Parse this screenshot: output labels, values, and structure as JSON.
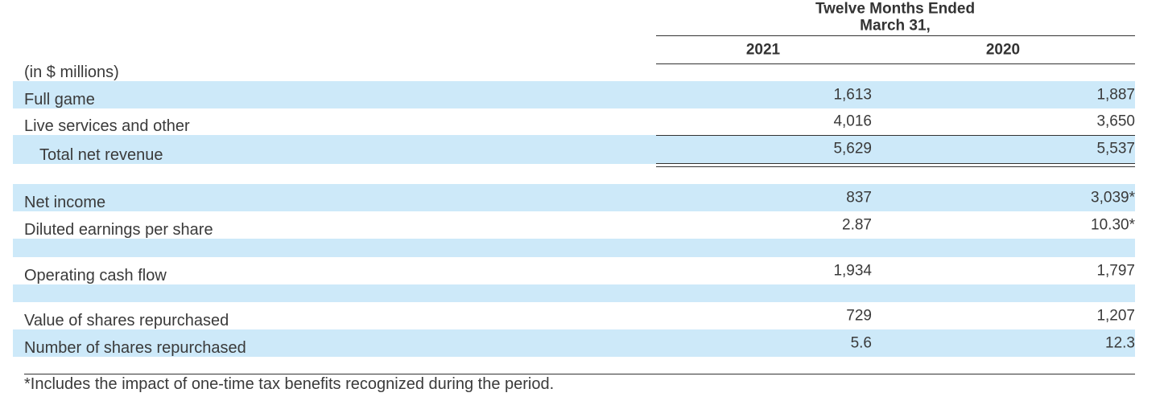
{
  "header": {
    "period": [
      "Twelve Months Ended",
      "March 31,"
    ],
    "columns": [
      "2021",
      "2020"
    ],
    "unit": "(in $ millions)"
  },
  "table": {
    "rows": [
      [
        "Full game",
        "1,613",
        "1,887"
      ],
      [
        "Live services and other",
        "4,016",
        "3,650"
      ],
      [
        "Total net revenue",
        "5,629",
        "5,537"
      ],
      [
        "Net income",
        "837",
        "3,039*"
      ],
      [
        "Diluted earnings per share",
        "2.87",
        "10.30*"
      ],
      [
        "Operating cash flow",
        "1,934",
        "1,797"
      ],
      [
        "Value of shares repurchased",
        "729",
        "1,207"
      ],
      [
        "Number of shares repurchased",
        "5.6",
        "12.3"
      ]
    ]
  },
  "footnote": "*Includes the impact of one-time tax benefits recognized during the period."
}
